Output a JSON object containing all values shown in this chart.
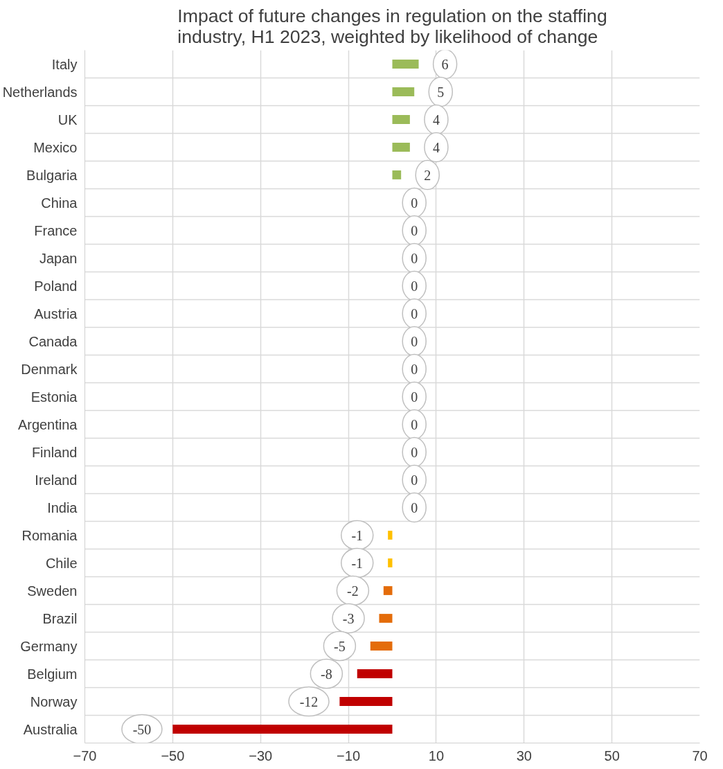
{
  "chart_data": {
    "type": "bar",
    "orientation": "horizontal",
    "title": "Impact of future changes in regulation on the staffing industry, H1 2023, weighted by likelihood of change",
    "categories": [
      "Italy",
      "Netherlands",
      "UK",
      "Mexico",
      "Bulgaria",
      "China",
      "France",
      "Japan",
      "Poland",
      "Austria",
      "Canada",
      "Denmark",
      "Estonia",
      "Argentina",
      "Finland",
      "Ireland",
      "India",
      "Romania",
      "Chile",
      "Sweden",
      "Brazil",
      "Germany",
      "Belgium",
      "Norway",
      "Australia"
    ],
    "values": [
      6,
      5,
      4,
      4,
      2,
      0,
      0,
      0,
      0,
      0,
      0,
      0,
      0,
      0,
      0,
      0,
      0,
      -1,
      -1,
      -2,
      -3,
      -5,
      -8,
      -12,
      -50
    ],
    "colors": [
      "#9bbb59",
      "#9bbb59",
      "#9bbb59",
      "#9bbb59",
      "#9bbb59",
      "#9bbb59",
      "#9bbb59",
      "#9bbb59",
      "#9bbb59",
      "#9bbb59",
      "#9bbb59",
      "#9bbb59",
      "#9bbb59",
      "#9bbb59",
      "#9bbb59",
      "#9bbb59",
      "#9bbb59",
      "#ffc000",
      "#ffc000",
      "#e46c0a",
      "#e46c0a",
      "#e46c0a",
      "#c00000",
      "#c00000",
      "#c00000"
    ],
    "xlim": [
      -70,
      70
    ],
    "xticks": [
      -70,
      -50,
      -30,
      -10,
      10,
      30,
      50,
      70
    ],
    "grid": true,
    "data_labels": true
  }
}
